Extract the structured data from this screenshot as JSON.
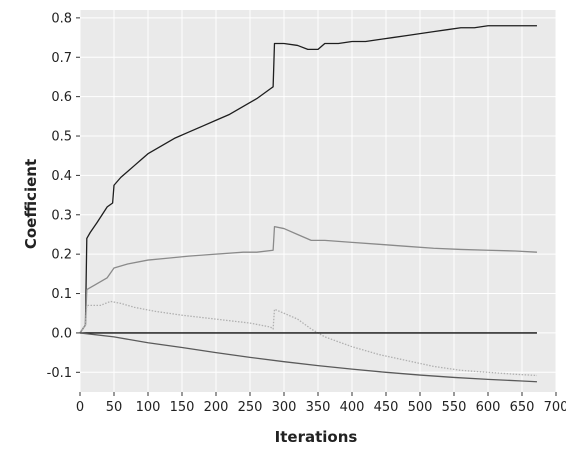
{
  "chart_data": {
    "type": "line",
    "xlabel": "Iterations",
    "ylabel": "Coefficient",
    "xlim": [
      0,
      700
    ],
    "ylim": [
      -0.15,
      0.82
    ],
    "xticks": [
      0,
      50,
      100,
      150,
      200,
      250,
      300,
      350,
      400,
      450,
      500,
      550,
      600,
      650,
      700
    ],
    "yticks": [
      -0.1,
      0.0,
      0.1,
      0.2,
      0.3,
      0.4,
      0.5,
      0.6,
      0.7,
      0.8
    ],
    "ytick_labels": [
      "-0.1",
      "0.0",
      "0.1",
      "0.2",
      "0.3",
      "0.4",
      "0.5",
      "0.6",
      "0.7",
      "0.8"
    ],
    "grid": true,
    "series": [
      {
        "color": "#1e1e1e",
        "style": "solid",
        "points": [
          [
            0,
            0.0
          ],
          [
            8,
            0.02
          ],
          [
            10,
            0.24
          ],
          [
            15,
            0.255
          ],
          [
            25,
            0.28
          ],
          [
            40,
            0.32
          ],
          [
            48,
            0.33
          ],
          [
            50,
            0.375
          ],
          [
            60,
            0.395
          ],
          [
            70,
            0.41
          ],
          [
            80,
            0.425
          ],
          [
            90,
            0.44
          ],
          [
            100,
            0.455
          ],
          [
            120,
            0.475
          ],
          [
            140,
            0.495
          ],
          [
            160,
            0.51
          ],
          [
            180,
            0.525
          ],
          [
            200,
            0.54
          ],
          [
            220,
            0.555
          ],
          [
            240,
            0.575
          ],
          [
            260,
            0.595
          ],
          [
            280,
            0.62
          ],
          [
            284,
            0.625
          ],
          [
            286,
            0.735
          ],
          [
            300,
            0.735
          ],
          [
            320,
            0.73
          ],
          [
            335,
            0.72
          ],
          [
            350,
            0.72
          ],
          [
            360,
            0.735
          ],
          [
            380,
            0.735
          ],
          [
            400,
            0.74
          ],
          [
            420,
            0.74
          ],
          [
            440,
            0.745
          ],
          [
            460,
            0.75
          ],
          [
            480,
            0.755
          ],
          [
            500,
            0.76
          ],
          [
            520,
            0.765
          ],
          [
            540,
            0.77
          ],
          [
            560,
            0.775
          ],
          [
            580,
            0.775
          ],
          [
            600,
            0.78
          ],
          [
            620,
            0.78
          ],
          [
            640,
            0.78
          ],
          [
            660,
            0.78
          ],
          [
            672,
            0.78
          ]
        ]
      },
      {
        "color": "#8a8a8a",
        "style": "solid",
        "points": [
          [
            0,
            0.0
          ],
          [
            8,
            0.02
          ],
          [
            10,
            0.11
          ],
          [
            20,
            0.12
          ],
          [
            40,
            0.14
          ],
          [
            50,
            0.165
          ],
          [
            70,
            0.175
          ],
          [
            100,
            0.185
          ],
          [
            130,
            0.19
          ],
          [
            160,
            0.195
          ],
          [
            200,
            0.2
          ],
          [
            240,
            0.205
          ],
          [
            260,
            0.205
          ],
          [
            284,
            0.21
          ],
          [
            286,
            0.27
          ],
          [
            300,
            0.265
          ],
          [
            320,
            0.25
          ],
          [
            340,
            0.235
          ],
          [
            360,
            0.235
          ],
          [
            400,
            0.23
          ],
          [
            440,
            0.225
          ],
          [
            480,
            0.22
          ],
          [
            520,
            0.215
          ],
          [
            560,
            0.212
          ],
          [
            600,
            0.21
          ],
          [
            640,
            0.208
          ],
          [
            672,
            0.205
          ]
        ]
      },
      {
        "color": "#b0b0b0",
        "style": "dotted",
        "points": [
          [
            0,
            0.0
          ],
          [
            8,
            0.02
          ],
          [
            10,
            0.07
          ],
          [
            30,
            0.07
          ],
          [
            45,
            0.08
          ],
          [
            60,
            0.075
          ],
          [
            80,
            0.065
          ],
          [
            110,
            0.055
          ],
          [
            150,
            0.045
          ],
          [
            200,
            0.035
          ],
          [
            250,
            0.025
          ],
          [
            280,
            0.015
          ],
          [
            284,
            0.01
          ],
          [
            286,
            0.06
          ],
          [
            300,
            0.05
          ],
          [
            320,
            0.035
          ],
          [
            340,
            0.01
          ],
          [
            360,
            -0.01
          ],
          [
            400,
            -0.035
          ],
          [
            440,
            -0.055
          ],
          [
            480,
            -0.07
          ],
          [
            520,
            -0.085
          ],
          [
            560,
            -0.095
          ],
          [
            600,
            -0.1
          ],
          [
            640,
            -0.105
          ],
          [
            672,
            -0.108
          ]
        ]
      },
      {
        "color": "#111111",
        "style": "solid",
        "points": [
          [
            0,
            0.0
          ],
          [
            672,
            0.0
          ]
        ]
      },
      {
        "color": "#5a5a5a",
        "style": "solid",
        "points": [
          [
            0,
            0.0
          ],
          [
            50,
            -0.01
          ],
          [
            100,
            -0.025
          ],
          [
            150,
            -0.037
          ],
          [
            200,
            -0.05
          ],
          [
            250,
            -0.062
          ],
          [
            300,
            -0.073
          ],
          [
            350,
            -0.083
          ],
          [
            400,
            -0.092
          ],
          [
            450,
            -0.1
          ],
          [
            500,
            -0.107
          ],
          [
            550,
            -0.113
          ],
          [
            600,
            -0.118
          ],
          [
            650,
            -0.122
          ],
          [
            672,
            -0.124
          ]
        ]
      }
    ]
  }
}
